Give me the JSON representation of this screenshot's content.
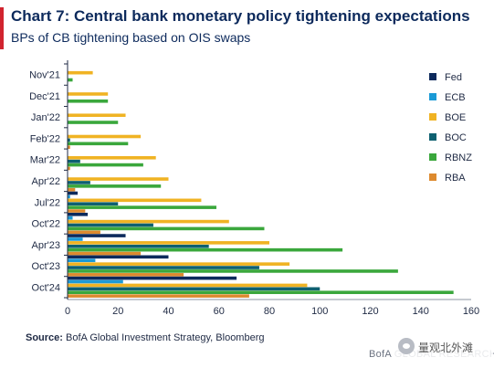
{
  "header": {
    "title": "Chart 7: Central bank monetary policy tightening expectations",
    "subtitle": "BPs of CB tightening based on OIS swaps"
  },
  "footer": {
    "source_label": "Source:",
    "source_text": " BofA Global Investment Strategy, Bloomberg",
    "brand": "BofA GLOBAL RESEARCH",
    "watermark_text": "量观北外滩"
  },
  "chart_data": {
    "type": "bar",
    "orientation": "horizontal",
    "title": "Chart 7: Central bank monetary policy tightening expectations",
    "subtitle": "BPs of CB tightening based on OIS swaps",
    "categories": [
      "Nov'21",
      "Dec'21",
      "Jan'22",
      "Feb'22",
      "Mar'22",
      "Apr'22",
      "Jul'22",
      "Oct'22",
      "Apr'23",
      "Oct'23",
      "Oct'24"
    ],
    "xlim": [
      0,
      160
    ],
    "xticks": [
      0,
      20,
      40,
      60,
      80,
      100,
      120,
      140,
      160
    ],
    "grid": false,
    "legend_position": "right",
    "series": [
      {
        "name": "Fed",
        "color": "#0d2a5c",
        "values": [
          0,
          0,
          0,
          0,
          0,
          0,
          4,
          8,
          23,
          40,
          67
        ]
      },
      {
        "name": "ECB",
        "color": "#1b9ad6",
        "values": [
          0,
          0,
          0,
          0,
          0,
          0,
          1,
          2,
          6,
          11,
          22
        ]
      },
      {
        "name": "BOE",
        "color": "#f0b323",
        "values": [
          10,
          16,
          23,
          29,
          35,
          40,
          53,
          64,
          80,
          88,
          95
        ]
      },
      {
        "name": "BOC",
        "color": "#0e6070",
        "values": [
          0,
          0,
          0,
          1,
          5,
          9,
          20,
          34,
          56,
          76,
          100
        ]
      },
      {
        "name": "RBNZ",
        "color": "#3aa73c",
        "values": [
          2,
          16,
          20,
          24,
          30,
          37,
          59,
          78,
          109,
          131,
          153
        ]
      },
      {
        "name": "RBA",
        "color": "#dd8a2e",
        "values": [
          0,
          0,
          0,
          1,
          1,
          3,
          7,
          13,
          29,
          46,
          72
        ]
      }
    ]
  }
}
